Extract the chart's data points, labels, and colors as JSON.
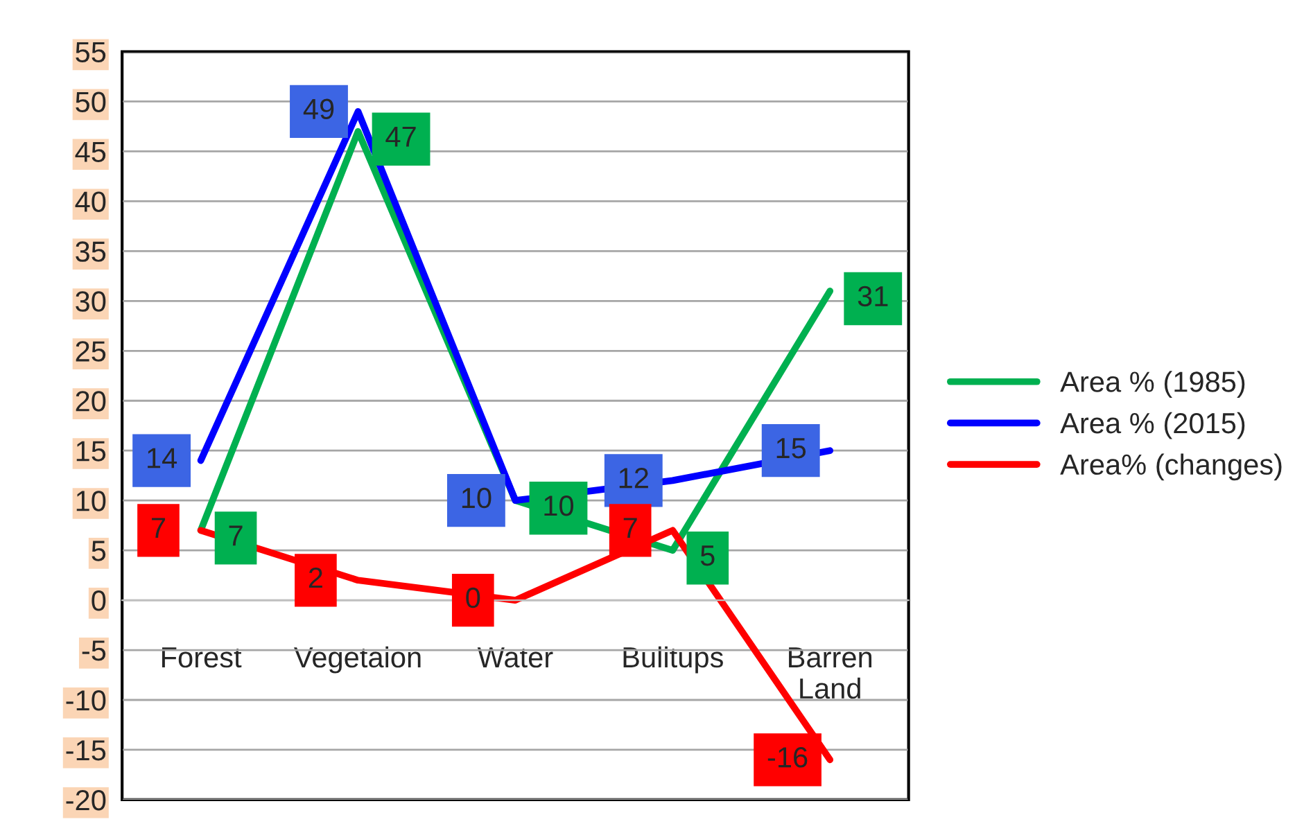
{
  "chart_data": {
    "type": "line",
    "categories": [
      "Forest",
      "Vegetaion",
      "Water",
      "Bulitups",
      "Barren Land"
    ],
    "series": [
      {
        "name": "Area % (1985)",
        "color": "#00b050",
        "values": [
          7,
          47,
          10,
          5,
          31
        ]
      },
      {
        "name": "Area % (2015)",
        "color": "#0000ff",
        "values": [
          14,
          49,
          10,
          12,
          15
        ]
      },
      {
        "name": "Area% (changes)",
        "color": "#ff0000",
        "values": [
          7,
          2,
          0,
          7,
          -16
        ]
      }
    ],
    "ylim": [
      -20,
      55
    ],
    "yticks": [
      -20,
      -15,
      -10,
      -5,
      0,
      5,
      10,
      15,
      20,
      25,
      30,
      35,
      40,
      45,
      50,
      55
    ],
    "grid": "y",
    "legend": "right",
    "data_labels": true,
    "line_style": "solid"
  }
}
